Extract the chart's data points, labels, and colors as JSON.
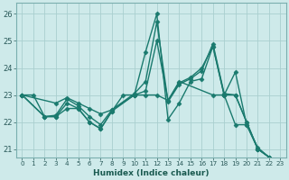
{
  "xlabel": "Humidex (Indice chaleur)",
  "xlim": [
    -0.5,
    23.5
  ],
  "ylim": [
    20.7,
    26.4
  ],
  "yticks": [
    21,
    22,
    23,
    24,
    25,
    26
  ],
  "xticks": [
    0,
    1,
    2,
    3,
    4,
    5,
    6,
    7,
    8,
    9,
    10,
    11,
    12,
    13,
    14,
    15,
    16,
    17,
    18,
    19,
    20,
    21,
    22,
    23
  ],
  "bg_color": "#ceeaea",
  "grid_color": "#aacfcf",
  "line_color": "#1a7a6e",
  "series": [
    {
      "x": [
        0,
        1,
        2,
        3,
        4,
        5,
        6,
        7,
        8,
        9,
        10,
        11,
        12,
        13,
        14,
        15,
        16,
        17,
        18,
        19,
        20,
        21,
        22
      ],
      "y": [
        23.0,
        23.0,
        22.2,
        22.2,
        22.7,
        22.5,
        22.0,
        21.75,
        22.4,
        23.0,
        23.0,
        24.6,
        26.0,
        22.1,
        22.7,
        23.5,
        23.6,
        24.8,
        23.0,
        23.85,
        21.9,
        21.05,
        20.7
      ]
    },
    {
      "x": [
        0,
        3,
        4,
        5,
        6,
        7,
        8,
        10,
        11,
        12,
        13,
        14,
        15,
        16,
        17,
        18,
        19,
        20,
        21,
        22
      ],
      "y": [
        23.0,
        22.7,
        22.9,
        22.7,
        22.5,
        22.3,
        22.45,
        23.05,
        23.5,
        25.7,
        22.75,
        23.4,
        23.6,
        23.9,
        24.9,
        23.05,
        23.0,
        22.0,
        21.0,
        20.7
      ]
    },
    {
      "x": [
        0,
        2,
        3,
        4,
        5,
        6,
        7,
        8,
        10,
        11,
        12,
        13,
        14,
        15,
        16,
        17,
        18,
        19,
        20,
        21,
        22
      ],
      "y": [
        23.0,
        22.2,
        22.25,
        22.85,
        22.6,
        22.2,
        21.9,
        22.45,
        23.0,
        23.15,
        25.0,
        22.8,
        23.45,
        23.65,
        24.0,
        24.8,
        23.0,
        23.0,
        22.0,
        21.0,
        20.7
      ]
    },
    {
      "x": [
        0,
        2,
        3,
        4,
        5,
        6,
        7,
        8,
        10,
        11,
        12,
        13,
        14,
        17,
        18,
        19,
        20,
        21,
        22
      ],
      "y": [
        23.0,
        22.2,
        22.2,
        22.5,
        22.5,
        22.0,
        21.75,
        22.4,
        23.0,
        23.0,
        23.0,
        22.8,
        23.5,
        23.0,
        23.0,
        21.9,
        21.9,
        21.0,
        20.7
      ]
    }
  ],
  "marker": "D",
  "markersize": 2.5,
  "linewidth": 1.0
}
